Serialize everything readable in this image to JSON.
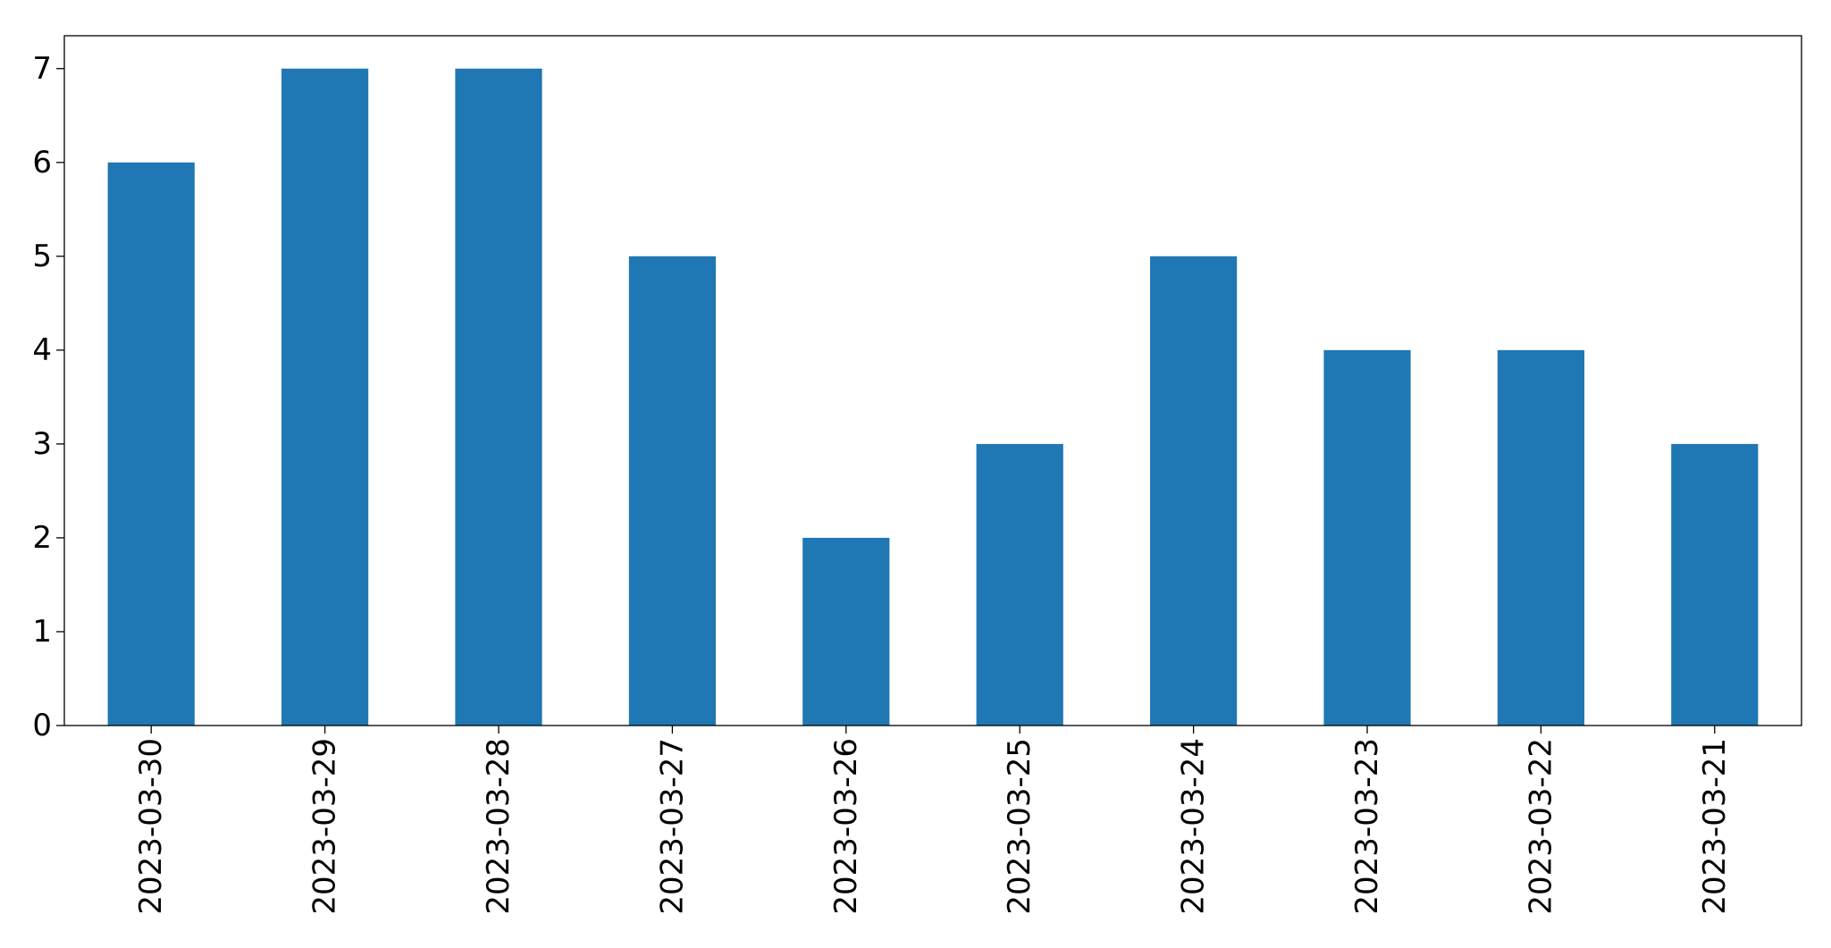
{
  "chart_data": {
    "type": "bar",
    "categories": [
      "2023-03-30",
      "2023-03-29",
      "2023-03-28",
      "2023-03-27",
      "2023-03-26",
      "2023-03-25",
      "2023-03-24",
      "2023-03-23",
      "2023-03-22",
      "2023-03-21"
    ],
    "values": [
      6,
      7,
      7,
      5,
      2,
      3,
      5,
      4,
      4,
      3
    ],
    "yticks": [
      "0",
      "1",
      "2",
      "3",
      "4",
      "5",
      "6",
      "7"
    ],
    "ylim": [
      0,
      7.35
    ],
    "grid": false,
    "bar_color": "#1f77b4",
    "axis_color": "#000000"
  }
}
